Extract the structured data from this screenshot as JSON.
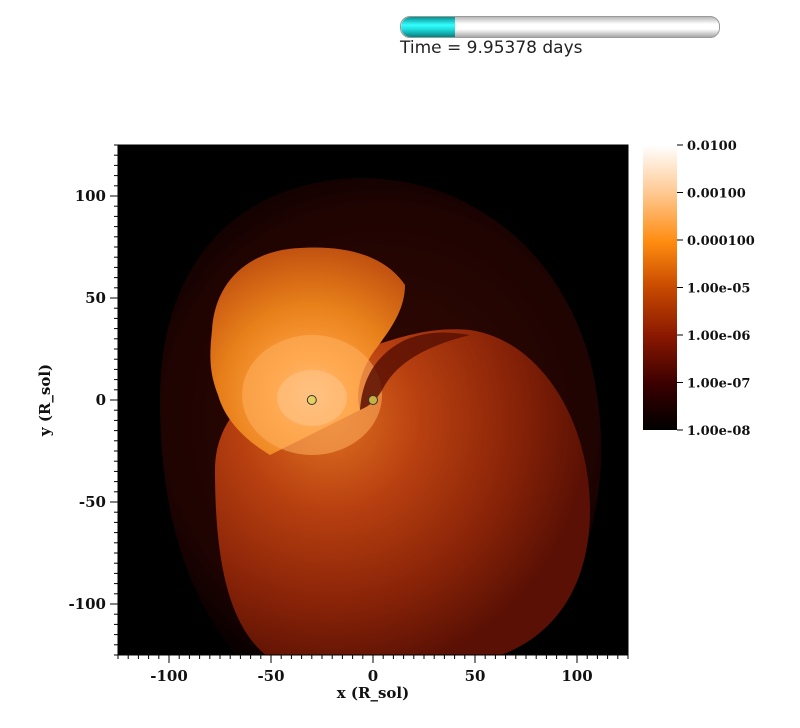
{
  "time_bar": {
    "label": "Time = 9.95378 days",
    "progress_fraction": 0.17,
    "fill_color": "#22e0e0"
  },
  "chart_data": {
    "type": "heatmap",
    "title": "",
    "xlabel": "x (R_sol)",
    "ylabel": "y (R_sol)",
    "xlim": [
      -125,
      125
    ],
    "ylim": [
      -125,
      125
    ],
    "x_ticks": [
      -100,
      -50,
      0,
      50,
      100
    ],
    "y_ticks": [
      100,
      50,
      0,
      -50,
      -100
    ],
    "colorbar": {
      "scale": "log",
      "range": [
        1e-08,
        0.01
      ],
      "tick_values": [
        0.01,
        0.001,
        0.0001,
        1e-05,
        1e-06,
        1e-07,
        1e-08
      ],
      "tick_labels": [
        "0.0100",
        "0.00100",
        "0.000100",
        "1.00e-05",
        "1.00e-06",
        "1.00e-07",
        "1.00e-08"
      ],
      "colors": [
        "#000000",
        "#3a0000",
        "#8a1800",
        "#c84a00",
        "#ff8c10",
        "#ffc890",
        "#ffffff"
      ]
    },
    "markers": [
      {
        "x": -30,
        "y": 0,
        "color": "#e6d060"
      },
      {
        "x": 0,
        "y": 0,
        "color": "#c8b040"
      }
    ]
  }
}
